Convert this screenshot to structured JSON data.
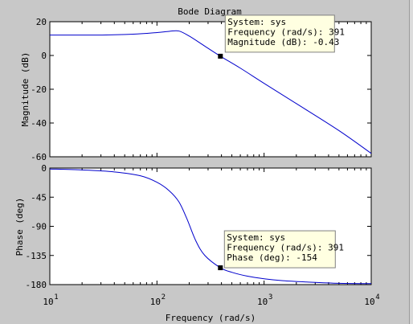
{
  "figure": {
    "title": "Bode Diagram",
    "xlabel": "Frequency  (rad/s)"
  },
  "chart_data": [
    {
      "type": "line",
      "title": "Bode Diagram",
      "xlabel": "",
      "ylabel": "Magnitude (dB)",
      "xscale": "log",
      "xlim": [
        10,
        10000
      ],
      "ylim": [
        -60,
        20
      ],
      "yticks": [
        "20",
        "0",
        "-20",
        "-40",
        "-60"
      ],
      "grid": false,
      "series": [
        {
          "color": "#0000cc",
          "x": [
            10,
            30,
            60,
            100,
            130,
            160,
            200,
            280,
            391,
            600,
            1000,
            2000,
            5000,
            10000
          ],
          "y": [
            12.1,
            12.1,
            12.6,
            13.6,
            14.3,
            14.5,
            11.5,
            5.5,
            -0.43,
            -7.5,
            -16.5,
            -28.5,
            -44.5,
            -58.0
          ]
        }
      ],
      "datatip": {
        "x": 391,
        "y": -0.43,
        "lines": [
          "System: sys",
          "Frequency (rad/s): 391",
          "Magnitude (dB): -0.43"
        ]
      }
    },
    {
      "type": "line",
      "title": "",
      "xlabel": "Frequency  (rad/s)",
      "ylabel": "Phase (deg)",
      "xscale": "log",
      "xlim": [
        10,
        10000
      ],
      "ylim": [
        -180,
        0
      ],
      "yticks": [
        "0",
        "-45",
        "-90",
        "-135",
        "-180"
      ],
      "xticks": [
        {
          "base": "10",
          "exp": "1"
        },
        {
          "base": "10",
          "exp": "2"
        },
        {
          "base": "10",
          "exp": "3"
        },
        {
          "base": "10",
          "exp": "4"
        }
      ],
      "grid": false,
      "series": [
        {
          "color": "#0000cc",
          "x": [
            10,
            20,
            40,
            70,
            100,
            130,
            160,
            190,
            230,
            280,
            391,
            500,
            700,
            1000,
            1500,
            2500,
            5000,
            10000
          ],
          "y": [
            -1.5,
            -3,
            -6,
            -12,
            -22,
            -35,
            -52,
            -78,
            -112,
            -135,
            -154,
            -161,
            -167,
            -171,
            -174,
            -176,
            -178,
            -178.5
          ]
        }
      ],
      "datatip": {
        "x": 391,
        "y": -154,
        "lines": [
          "System: sys",
          "Frequency (rad/s): 391",
          "Phase (deg): -154"
        ]
      }
    }
  ]
}
